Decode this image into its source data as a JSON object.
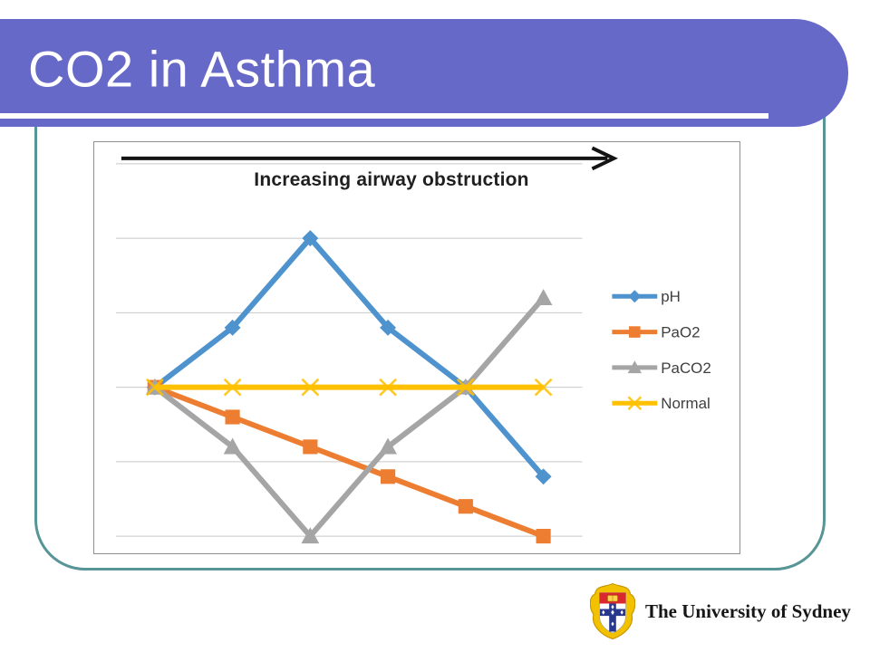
{
  "slide": {
    "title": "CO2 in Asthma"
  },
  "theme": {
    "banner_color": "#6769C8",
    "banner_underline_color": "#FFFFFF",
    "frame_border_color": "#579597",
    "chart_border_color": "#8F8F8F",
    "gridline_color": "#C8C8C8",
    "arrow_color": "#141414",
    "annotation_color": "#1F1F1F",
    "legend_text_color": "#3F3F3F"
  },
  "chart_data": {
    "type": "line",
    "annotation": "Increasing airway obstruction",
    "x": [
      1,
      2,
      3,
      4,
      5,
      6
    ],
    "x_tick_labels_visible": false,
    "y_tick_labels_visible": false,
    "ylim": [
      0,
      5
    ],
    "grid": true,
    "legend_position": "right",
    "series": [
      {
        "name": "pH",
        "color": "#4E93CE",
        "marker": "diamond",
        "values": [
          2,
          2.8,
          4,
          2.8,
          2,
          0.8
        ]
      },
      {
        "name": "PaO2",
        "color": "#ED7D31",
        "marker": "square",
        "values": [
          2,
          1.6,
          1.2,
          0.8,
          0.4,
          0
        ]
      },
      {
        "name": "PaCO2",
        "color": "#A5A5A5",
        "marker": "triangle",
        "values": [
          2,
          1.2,
          0,
          1.2,
          2,
          3.2
        ]
      },
      {
        "name": "Normal",
        "color": "#FFC000",
        "marker": "x",
        "values": [
          2,
          2,
          2,
          2,
          2,
          2
        ]
      }
    ]
  },
  "footer": {
    "logo_text": "The University of Sydney",
    "logo_icon": "university-of-sydney-crest",
    "crest_colors": {
      "gold": "#F2C200",
      "red": "#D9282E",
      "blue": "#28388F"
    }
  }
}
